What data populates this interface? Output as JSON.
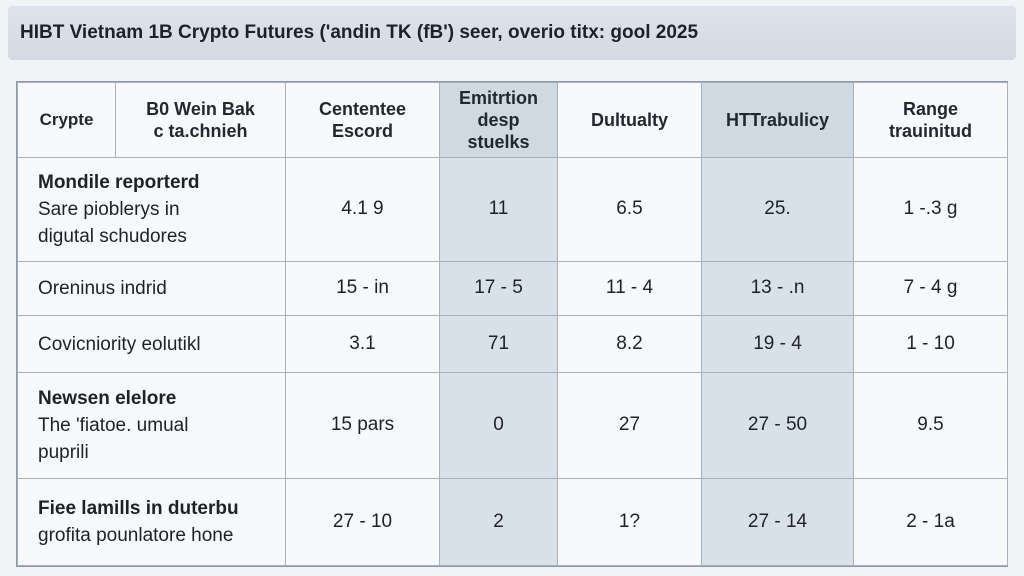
{
  "title": "HIBT Vietnam 1B Crypto Futures ('andin TK (fB') seer, overio titx: gool 2025",
  "table": {
    "headers": [
      [
        "Crypte"
      ],
      [
        "B0 Wein Bak",
        "c ta.chnieh"
      ],
      [
        "Cententee",
        "Escord"
      ],
      [
        "Emitrtion",
        "desp",
        "stuelks"
      ],
      [
        "Dultualty"
      ],
      [
        "HTTrabulicy"
      ],
      [
        "Range",
        "trauinitud"
      ]
    ],
    "rows": [
      {
        "title": "Mondile reporterd",
        "subtitle_lines": [
          "Sare pioblerys in",
          "digutal schudores"
        ],
        "values": [
          "4.1 9",
          "11",
          "6.5",
          "25.",
          "1 -.3 g"
        ]
      },
      {
        "title": "",
        "subtitle_lines": [
          "Oreninus indrid"
        ],
        "values": [
          "15 - in",
          "17 - 5",
          "11 - 4",
          "13 - .n",
          "7 - 4 g"
        ]
      },
      {
        "title": "",
        "subtitle_lines": [
          "Covicniority eolutikl"
        ],
        "values": [
          "3.1",
          "71",
          "8.2",
          "19 - 4",
          "1 - 10"
        ]
      },
      {
        "title": "Newsen elelore",
        "subtitle_lines": [
          "The 'fiatoe. umual",
          "puprili"
        ],
        "values": [
          "15 pars",
          "0",
          "27",
          "27 - 50",
          "9.5"
        ]
      },
      {
        "title": "Fiee lamills in duterbu",
        "subtitle_lines": [
          "grofita pounlatore hone"
        ],
        "values": [
          "27 - 10",
          "2",
          "1?",
          "27 - 14",
          "2 - 1a"
        ]
      }
    ]
  }
}
